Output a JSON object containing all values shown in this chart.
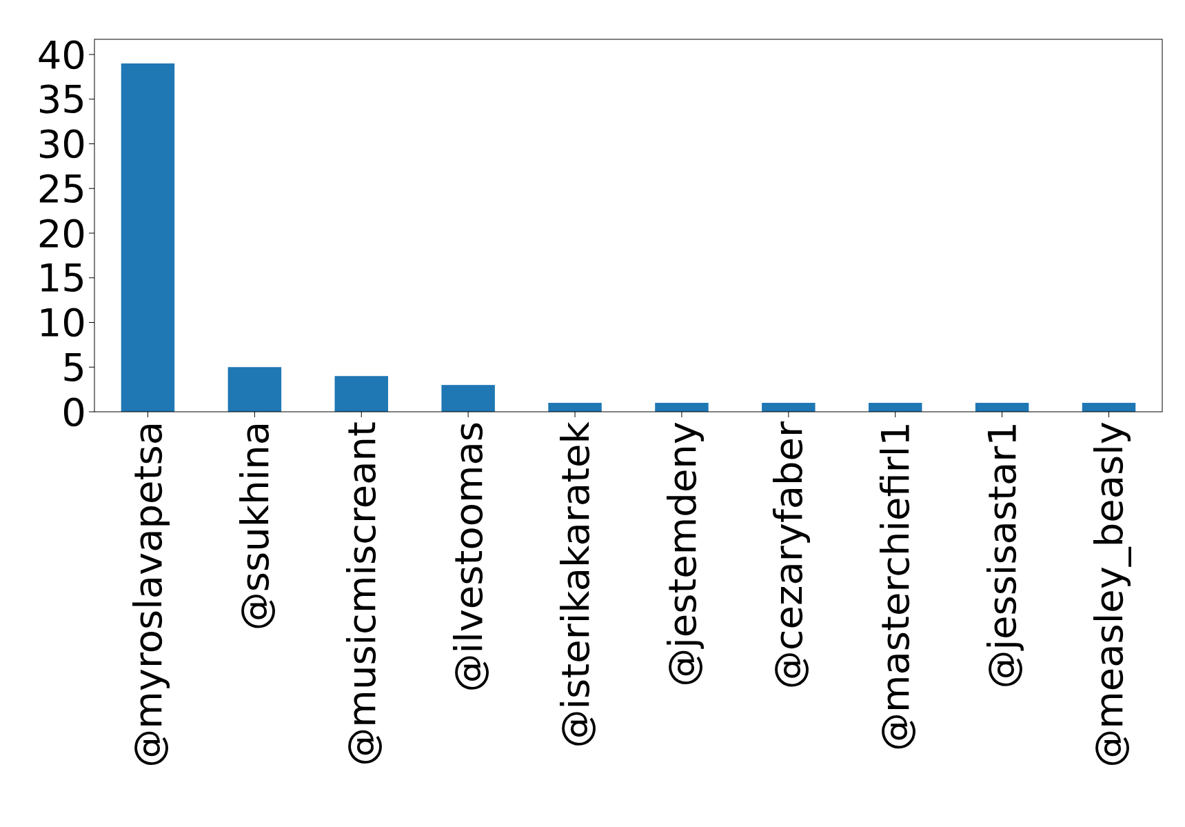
{
  "chart_data": {
    "type": "bar",
    "categories": [
      "@myroslavapetsa",
      "@ssukhina",
      "@musicmiscreant",
      "@ilvestoomas",
      "@isterikakaratek",
      "@jestemdeny",
      "@cezaryfaber",
      "@masterchiefirl1",
      "@jessisastar1",
      "@measley_beasly"
    ],
    "values": [
      39,
      5,
      4,
      3,
      1,
      1,
      1,
      1,
      1,
      1
    ],
    "color": "#1f77b4",
    "ylim": [
      0,
      41.7
    ],
    "yticks": [
      0,
      5,
      10,
      15,
      20,
      25,
      30,
      35,
      40
    ],
    "grid": false
  }
}
